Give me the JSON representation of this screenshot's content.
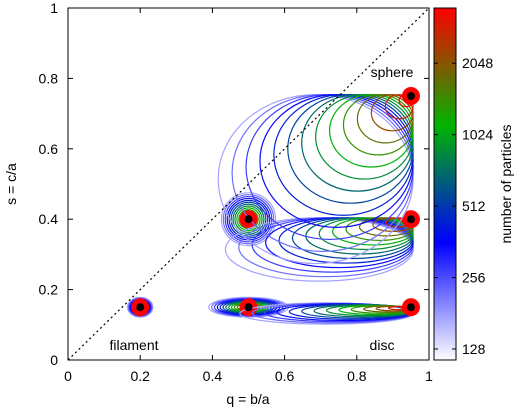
{
  "chart_data": {
    "type": "scatter",
    "xlabel": "q = b/a",
    "ylabel": "s = c/a",
    "xlim": [
      0,
      1
    ],
    "ylim": [
      0,
      1
    ],
    "xticks": [
      "0",
      "0.2",
      "0.4",
      "0.6",
      "0.8",
      "1"
    ],
    "yticks": [
      "0",
      "0.2",
      "0.4",
      "0.6",
      "0.8",
      "1"
    ],
    "grid": false,
    "reference_line": {
      "style": "dotted",
      "from": [
        0,
        0
      ],
      "to": [
        1,
        1
      ]
    },
    "annotations": [
      {
        "text": "sphere",
        "x": 0.93,
        "y": 0.8
      },
      {
        "text": "filament",
        "x": 0.21,
        "y": 0.04
      },
      {
        "text": "disc",
        "x": 0.9,
        "y": 0.04
      }
    ],
    "colorbar": {
      "label": "number of particles",
      "scale": "log",
      "ticks": [
        "128",
        "256",
        "512",
        "1024",
        "2048"
      ],
      "range": [
        115,
        3500
      ],
      "colors": [
        "#ffffff",
        "#0000ff",
        "#00b400",
        "#ff0000"
      ]
    },
    "points": [
      {
        "x": 0.2,
        "y": 0.15
      },
      {
        "x": 0.5,
        "y": 0.15
      },
      {
        "x": 0.5,
        "y": 0.4
      },
      {
        "x": 0.95,
        "y": 0.15
      },
      {
        "x": 0.95,
        "y": 0.4
      },
      {
        "x": 0.95,
        "y": 0.75
      }
    ],
    "contours_per_point": 14
  }
}
